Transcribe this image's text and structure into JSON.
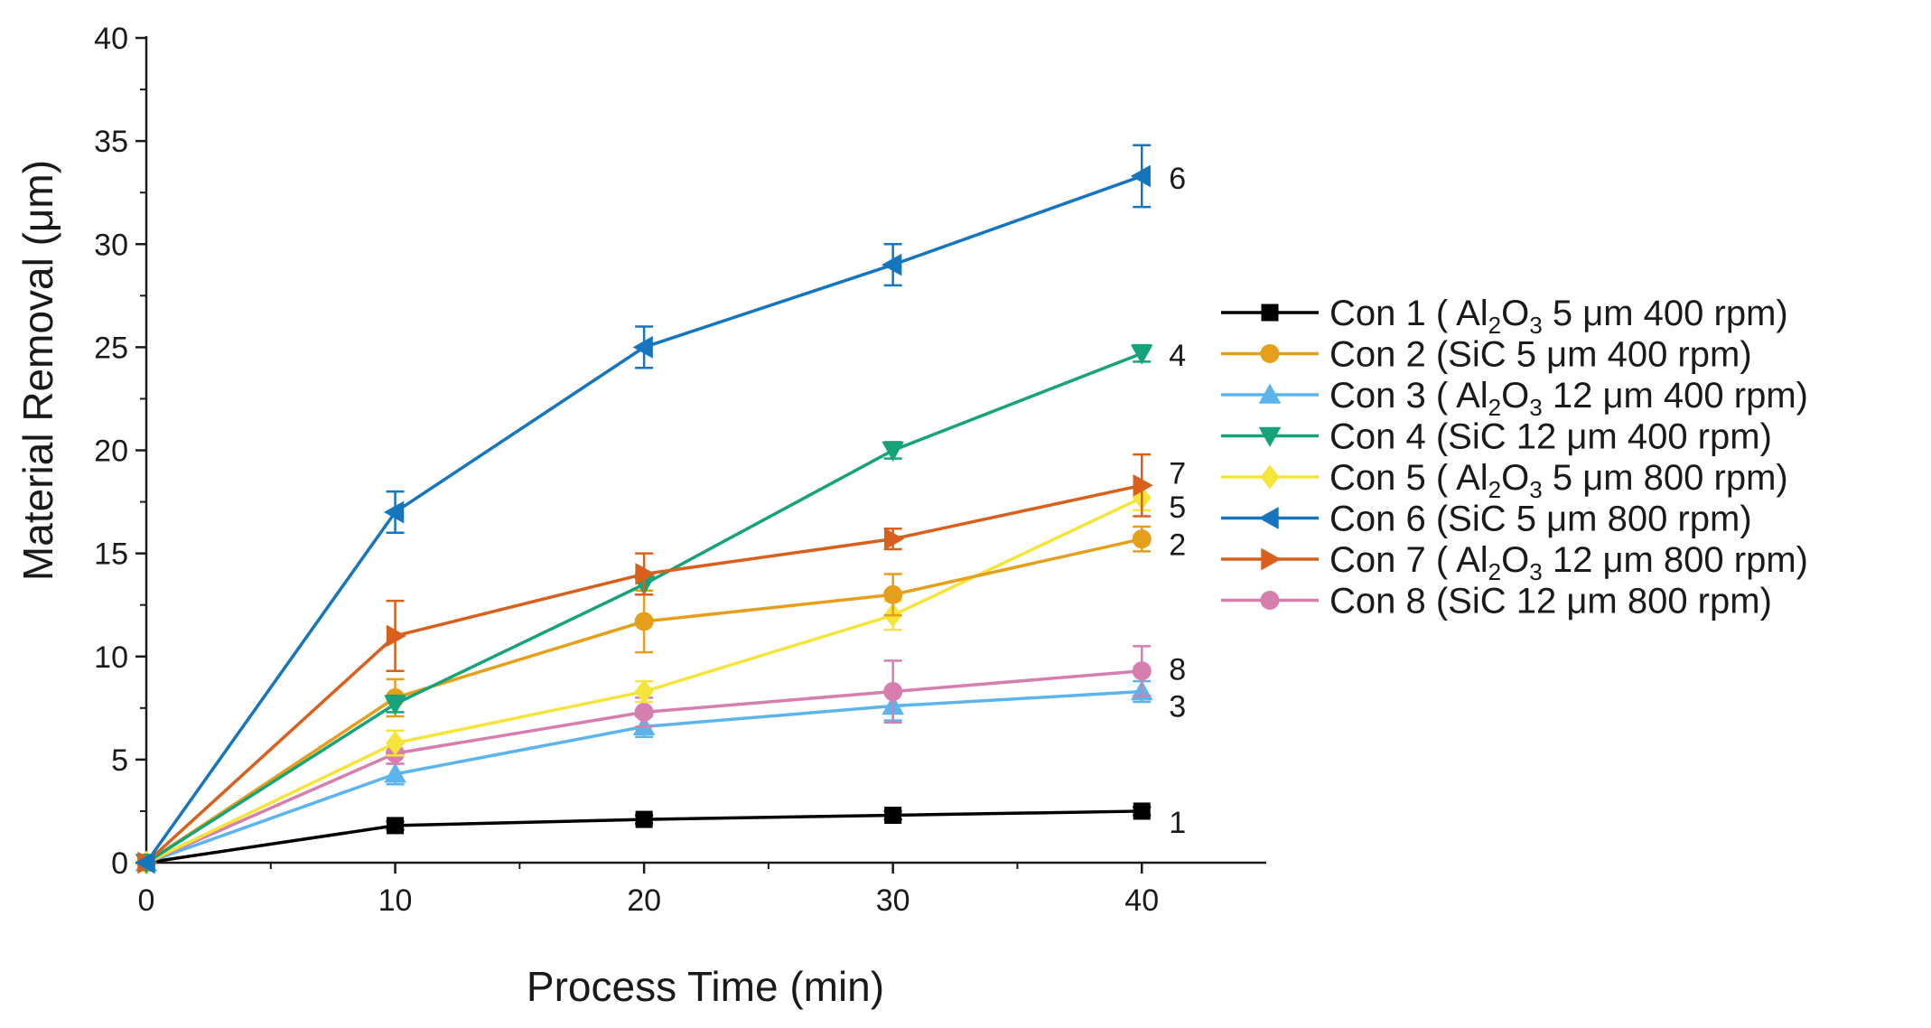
{
  "chart_data": {
    "type": "line",
    "xlabel": "Process Time (min)",
    "ylabel": "Material Removal (μm)",
    "xlim": [
      0,
      45
    ],
    "ylim": [
      0,
      40
    ],
    "xticks": [
      0,
      10,
      20,
      30,
      40
    ],
    "yticks": [
      0,
      5,
      10,
      15,
      20,
      25,
      30,
      35,
      40
    ],
    "x": [
      0,
      10,
      20,
      30,
      40
    ],
    "grid": false,
    "legend_position": "right",
    "series": [
      {
        "name": "Con 1",
        "label_pre": "Con 1 ( Al",
        "sub1": "2",
        "mid": "O",
        "sub2": "3",
        "label_post": " 5 μm 400 rpm)",
        "color": "#000000",
        "marker": "square",
        "values": [
          0,
          1.8,
          2.1,
          2.3,
          2.5
        ],
        "errors": [
          0,
          0.2,
          0.2,
          0.2,
          0.2
        ],
        "end_label": "1"
      },
      {
        "name": "Con 2",
        "label_pre": "Con 2 (SiC 5 μm 400 rpm)",
        "sub1": "",
        "mid": "",
        "sub2": "",
        "label_post": "",
        "color": "#E69F1A",
        "marker": "circle",
        "values": [
          0,
          8.0,
          11.7,
          13.0,
          15.7
        ],
        "errors": [
          0,
          0.9,
          1.5,
          1.0,
          0.6
        ],
        "end_label": "2"
      },
      {
        "name": "Con 3",
        "label_pre": "Con 3 ( Al",
        "sub1": "2",
        "mid": "O",
        "sub2": "3",
        "label_post": " 12 μm 400 rpm)",
        "color": "#5BB5EC",
        "marker": "triangle-up",
        "values": [
          0,
          4.3,
          6.6,
          7.6,
          8.3
        ],
        "errors": [
          0,
          0.5,
          0.5,
          0.7,
          0.5
        ],
        "end_label": "3"
      },
      {
        "name": "Con 4",
        "label_pre": "Con 4 (SiC 12 μm 400 rpm)",
        "sub1": "",
        "mid": "",
        "sub2": "",
        "label_post": "",
        "color": "#16A37A",
        "marker": "triangle-down",
        "values": [
          0,
          7.7,
          13.5,
          20.0,
          24.7
        ],
        "errors": [
          0,
          0.4,
          0.5,
          0.4,
          0.4
        ],
        "end_label": "4"
      },
      {
        "name": "Con 5",
        "label_pre": "Con 5 ( Al",
        "sub1": "2",
        "mid": "O",
        "sub2": "3",
        "label_post": " 5 μm 800 rpm)",
        "color": "#F5E43A",
        "marker": "diamond",
        "values": [
          0,
          5.8,
          8.3,
          12.0,
          17.7
        ],
        "errors": [
          0,
          0.6,
          0.5,
          0.7,
          0.6
        ],
        "end_label": "5"
      },
      {
        "name": "Con 6",
        "label_pre": "Con 6 (SiC 5 μm 800 rpm)",
        "sub1": "",
        "mid": "",
        "sub2": "",
        "label_post": "",
        "color": "#1576BE",
        "marker": "triangle-left",
        "values": [
          0,
          17.0,
          25.0,
          29.0,
          33.3
        ],
        "errors": [
          0,
          1.0,
          1.0,
          1.0,
          1.5
        ],
        "end_label": "6"
      },
      {
        "name": "Con 7",
        "label_pre": "Con 7 ( Al",
        "sub1": "2",
        "mid": "O",
        "sub2": "3",
        "label_post": " 12 μm 800 rpm)",
        "color": "#D9601C",
        "marker": "triangle-right",
        "values": [
          0,
          11.0,
          14.0,
          15.7,
          18.3
        ],
        "errors": [
          0,
          1.7,
          1.0,
          0.5,
          1.5
        ],
        "end_label": "7"
      },
      {
        "name": "Con 8",
        "label_pre": "Con 8 (SiC 12 μm 800 rpm)",
        "sub1": "",
        "mid": "",
        "sub2": "",
        "label_post": "",
        "color": "#D67FAE",
        "marker": "circle",
        "values": [
          0,
          5.3,
          7.3,
          8.3,
          9.3
        ],
        "errors": [
          0,
          0.5,
          0.7,
          1.5,
          1.2
        ],
        "end_label": "8"
      }
    ]
  }
}
